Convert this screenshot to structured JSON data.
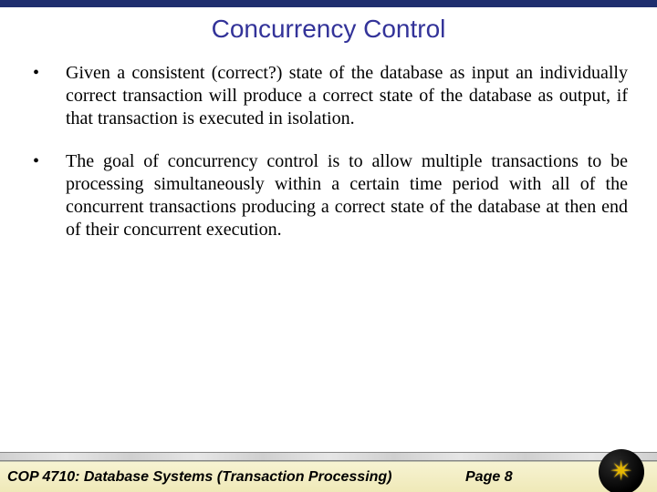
{
  "colors": {
    "top_bar": "#1f2e6e",
    "title": "#333399",
    "body_text": "#000000",
    "footer_gradient_top": "#f7f3d2",
    "footer_gradient_bottom": "#efe9b8",
    "logo_bg": "#000000",
    "logo_fg": "#e6b800"
  },
  "typography": {
    "title_font": "Arial",
    "title_size_pt": 21,
    "body_font": "Times New Roman",
    "body_size_pt": 15,
    "footer_font": "Arial",
    "footer_size_pt": 12,
    "footer_weight": "bold",
    "footer_style": "italic"
  },
  "title": "Concurrency Control",
  "bullets": [
    "Given a consistent (correct?) state of the database as input an individually correct transaction will produce a correct state of the database as output, if that transaction is executed in isolation.",
    "The goal of concurrency control is to allow multiple transactions to be processing simultaneously within a certain time period with all of the concurrent transactions producing a correct state of the database at then end of their concurrent execution."
  ],
  "footer": {
    "course": "COP 4710: Database Systems  (Transaction Processing)",
    "page": "Page 8",
    "logo_name": "ucf-pegasus"
  }
}
